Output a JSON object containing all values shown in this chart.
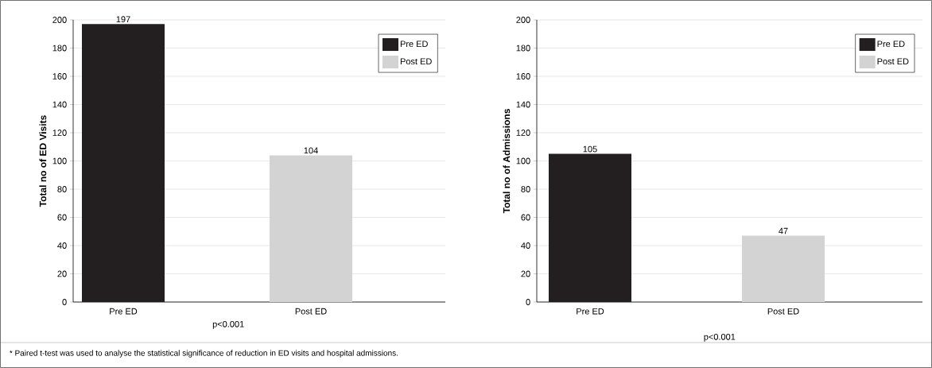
{
  "chart_data": [
    {
      "type": "bar",
      "ylabel": "Total no of ED Visits",
      "categories": [
        "Pre ED",
        "Post ED"
      ],
      "series": [
        {
          "name": "Pre ED",
          "color": "#231f20",
          "values": [
            197,
            null
          ]
        },
        {
          "name": "Post ED",
          "color": "#d3d3d3",
          "values": [
            null,
            104
          ]
        }
      ],
      "ylim": [
        0,
        200
      ],
      "yticks": [
        0,
        20,
        40,
        60,
        80,
        100,
        120,
        140,
        160,
        180,
        200
      ],
      "grid": "y",
      "legend": "top right",
      "data_labels": true,
      "annotations": [
        "p<0.001",
        "* Paired t-test was used to analyse the statistical significance of reduction in ED visits and hospital admissions."
      ]
    },
    {
      "type": "bar",
      "ylabel": "Total no of Admissions",
      "categories": [
        "Pre ED",
        "Post ED"
      ],
      "series": [
        {
          "name": "Pre ED",
          "color": "#231f20",
          "values": [
            105,
            null
          ]
        },
        {
          "name": "Post ED",
          "color": "#d3d3d3",
          "values": [
            null,
            47
          ]
        }
      ],
      "ylim": [
        0,
        200
      ],
      "yticks": [
        0,
        20,
        40,
        60,
        80,
        100,
        120,
        140,
        160,
        180,
        200
      ],
      "grid": "y",
      "legend": "top right",
      "data_labels": true,
      "annotations": [
        "p<0.001"
      ]
    }
  ]
}
